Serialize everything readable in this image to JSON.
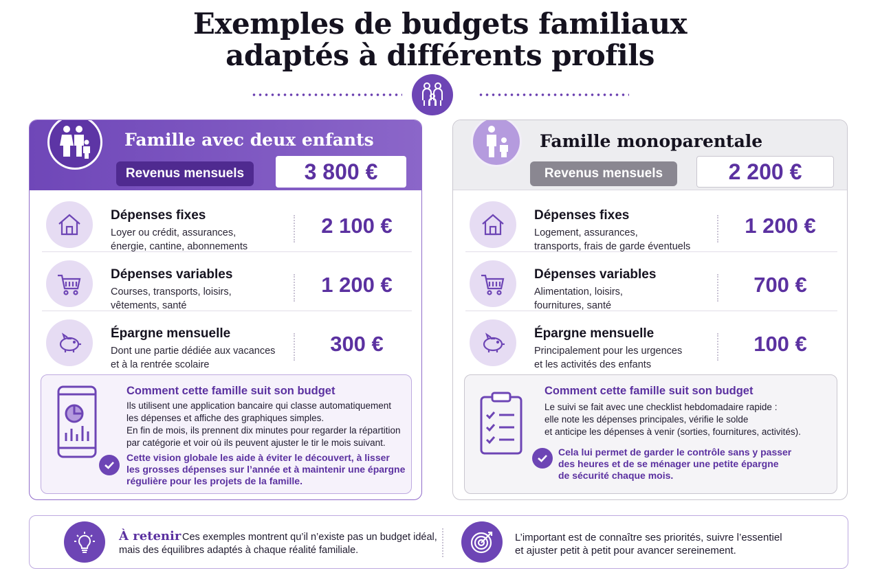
{
  "page": {
    "title_line1": "Exemples de budgets familiaux",
    "title_line2": "adaptés à différents profils",
    "accent_color": "#6d45b5",
    "divider_icon": "family-icon"
  },
  "cards": [
    {
      "title": "Famille avec deux enfants",
      "header_icon": "family-with-two-children-icon",
      "revenue_label": "Revenus mensuels",
      "revenue_value": "3 800 €",
      "rows": [
        {
          "icon": "house-icon",
          "title": "Dépenses fixes",
          "desc_line1": "Loyer ou crédit, assurances,",
          "desc_line2": "énergie, cantine, abonnements",
          "value": "2 100 €"
        },
        {
          "icon": "shopping-cart-icon",
          "title": "Dépenses variables",
          "desc_line1": "Courses, transports, loisirs,",
          "desc_line2": "vêtements, santé",
          "value": "1 200 €"
        },
        {
          "icon": "piggy-bank-icon",
          "title": "Épargne mensuelle",
          "desc_line1": "Dont une partie dédiée aux vacances",
          "desc_line2": "et à la rentrée scolaire",
          "value": "300 €"
        }
      ],
      "tracking": {
        "icon": "smartphone-chart-icon",
        "title": "Comment cette famille suit son budget",
        "lines": [
          "Ils utilisent une application bancaire qui classe automatiquement",
          "les dépenses et affiche des graphiques simples.",
          "En fin de mois, ils prennent dix minutes pour regarder la répartition",
          "par catégorie et voir où ils peuvent ajuster le tir le mois suivant."
        ],
        "conclusion": [
          "Cette vision globale les aide à éviter le découvert, à lisser",
          "les grosses dépenses sur l’année et à maintenir une épargne",
          "régulière pour les projets de la famille."
        ]
      }
    },
    {
      "title": "Famille monoparentale",
      "header_icon": "parent-and-child-icon",
      "revenue_label": "Revenus mensuels",
      "revenue_value": "2 200 €",
      "rows": [
        {
          "icon": "house-icon",
          "title": "Dépenses fixes",
          "desc_line1": "Logement, assurances,",
          "desc_line2": "transports, frais de garde éventuels",
          "value": "1 200 €"
        },
        {
          "icon": "shopping-cart-icon",
          "title": "Dépenses variables",
          "desc_line1": "Alimentation, loisirs,",
          "desc_line2": "fournitures, santé",
          "value": "700 €"
        },
        {
          "icon": "piggy-bank-icon",
          "title": "Épargne mensuelle",
          "desc_line1": "Principalement pour les urgences",
          "desc_line2": "et les activités des enfants",
          "value": "100 €"
        }
      ],
      "tracking": {
        "icon": "clipboard-checklist-icon",
        "title": "Comment cette famille suit son budget",
        "lines": [
          "Le suivi se fait avec une checklist hebdomadaire rapide :",
          "elle note les dépenses principales, vérifie le solde",
          "et anticipe les dépenses à venir (sorties, fournitures, activités)."
        ],
        "conclusion": [
          "Cela lui permet de garder le contrôle sans y passer",
          "des heures et de se ménager une petite épargne",
          "de sécurité chaque mois."
        ]
      }
    }
  ],
  "retenir": {
    "icon": "lightbulb-icon",
    "heading": "À retenir",
    "text1_line1": "Ces exemples montrent qu’il n’existe pas un budget idéal,",
    "text1_line2": "mais des équilibres adaptés à chaque réalité familiale.",
    "icon2": "target-icon",
    "text2_line1": "L’important est de connaître ses priorités, suivre l’essentiel",
    "text2_line2": "et ajuster petit à petit pour avancer sereinement."
  }
}
